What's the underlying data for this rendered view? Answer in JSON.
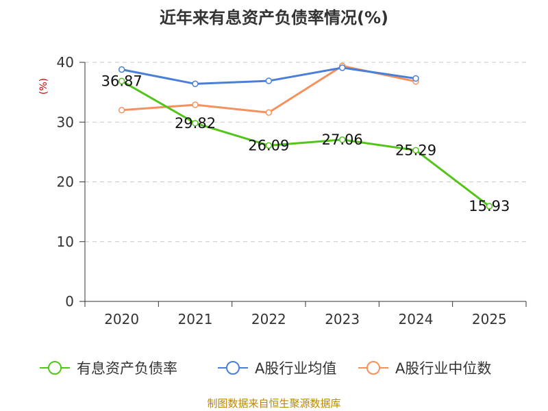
{
  "title": "近年来有息资产负债率情况(%)",
  "source": "制图数据来自恒生聚源数据库",
  "chart_data": {
    "type": "line",
    "title": "近年来有息资产负债率情况(%)",
    "xlabel": "",
    "ylabel": "(%)",
    "ylim": [
      0,
      40
    ],
    "yticks": [
      0,
      10,
      20,
      30,
      40
    ],
    "grid": true,
    "legend_position": "bottom",
    "categories": [
      "2020",
      "2021",
      "2022",
      "2023",
      "2024",
      "2025"
    ],
    "series": [
      {
        "name": "有息资产负债率",
        "color": "#52c41a",
        "values": [
          36.87,
          29.82,
          26.09,
          27.06,
          25.29,
          15.93
        ],
        "labels": [
          "36.87",
          "29.82",
          "26.09",
          "27.06",
          "25.29",
          "15.93"
        ],
        "show_labels": true
      },
      {
        "name": "A股行业均值",
        "color": "#4a7fd8",
        "values": [
          38.8,
          36.4,
          36.9,
          39.1,
          37.3,
          null
        ],
        "show_labels": false
      },
      {
        "name": "A股行业中位数",
        "color": "#f5915c",
        "values": [
          32.0,
          32.9,
          31.6,
          39.4,
          36.8,
          null
        ],
        "show_labels": false
      }
    ]
  }
}
